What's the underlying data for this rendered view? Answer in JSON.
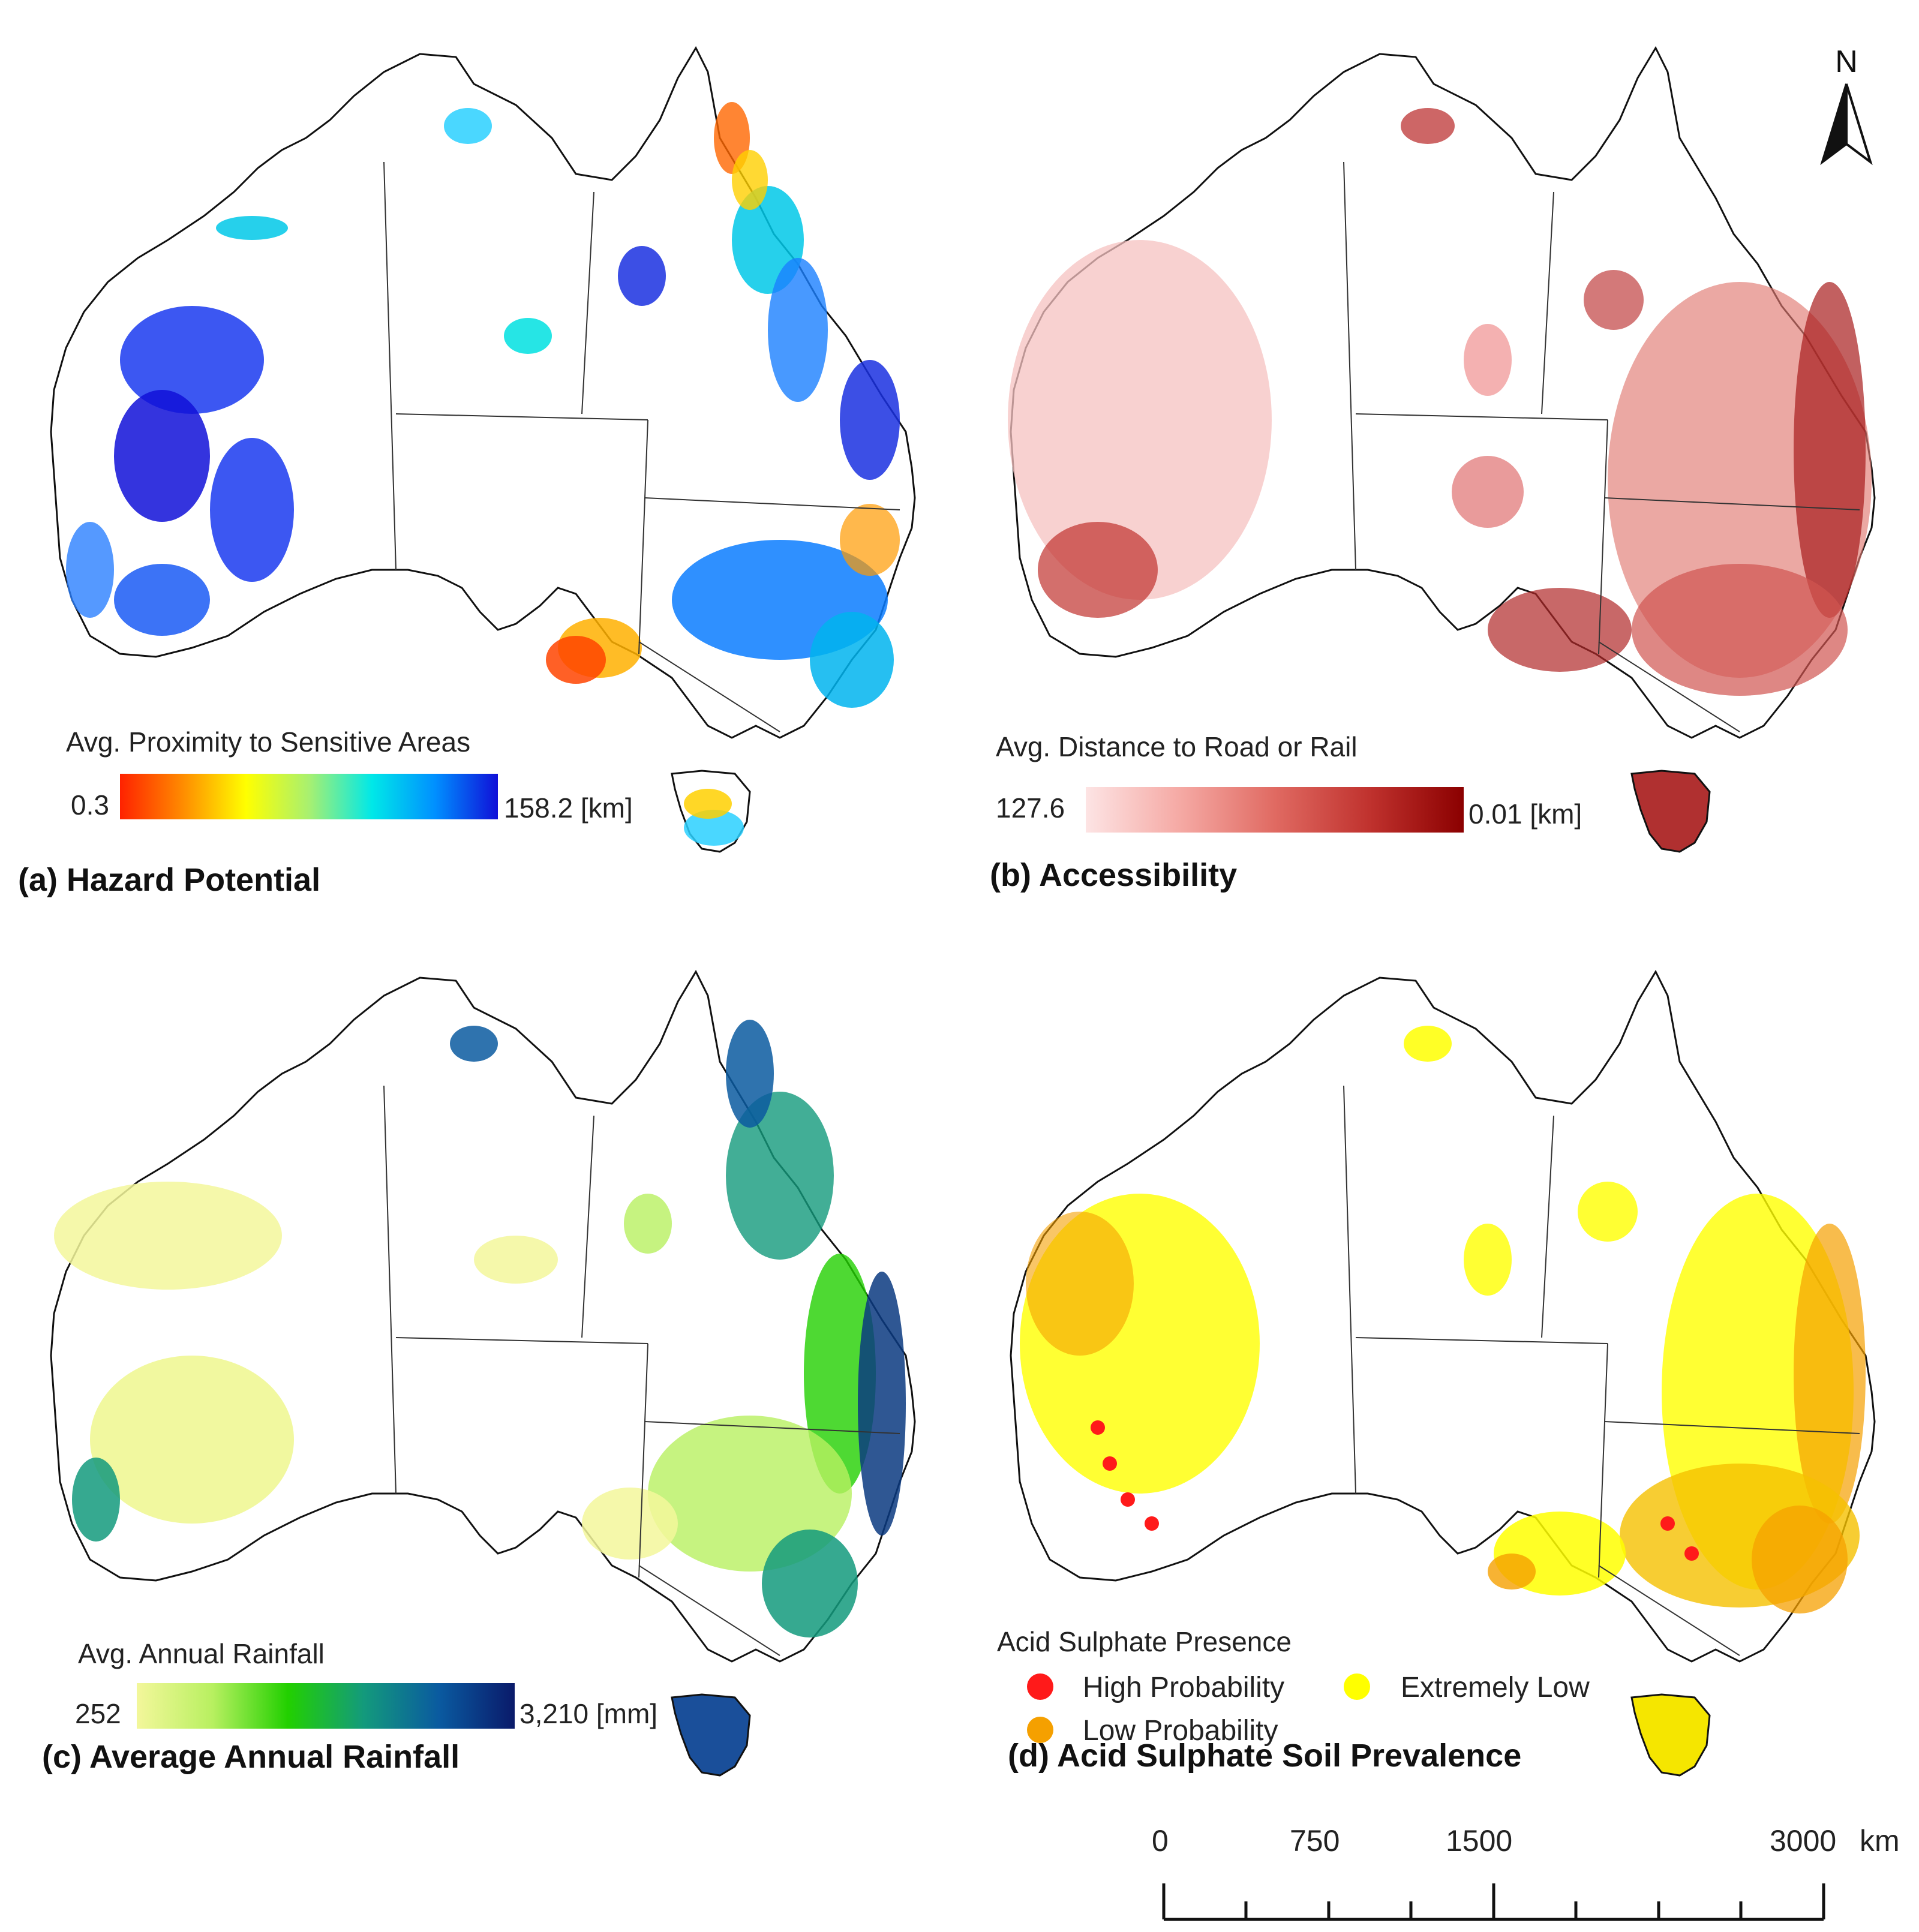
{
  "panels": {
    "a": {
      "label": "(a) Hazard Potential",
      "legend_title": "Avg. Proximity to Sensitive Areas",
      "min_label": "0.3",
      "max_label": "158.2 [km]",
      "gradient": [
        "#ff2200",
        "#ff8c00",
        "#ffff00",
        "#a8f070",
        "#00e8e8",
        "#0090ff",
        "#1010d8"
      ]
    },
    "b": {
      "label": "(b) Accessibility",
      "legend_title": "Avg. Distance to Road or Rail",
      "min_label": "127.6",
      "max_label": "0.01 [km]",
      "gradient": [
        "#fde4e4",
        "#f5a9a4",
        "#e06a62",
        "#c0322e",
        "#8b0000"
      ]
    },
    "c": {
      "label": "(c) Average Annual Rainfall",
      "legend_title": "Avg. Annual Rainfall",
      "min_label": "252",
      "max_label": "3,210 [mm]",
      "gradient": [
        "#f3f79b",
        "#b8f060",
        "#22d000",
        "#139a7c",
        "#0a5aa0",
        "#0a1a6a"
      ]
    },
    "d": {
      "label": "(d) Acid Sulphate Soil Prevalence",
      "legend_title": "Acid Sulphate Presence",
      "categories": [
        {
          "label": "High Probability",
          "color": "#ff1a1a"
        },
        {
          "label": "Low Probability",
          "color": "#f5a000"
        },
        {
          "label": "Extremely Low",
          "color": "#ffff00"
        }
      ]
    }
  },
  "north_label": "N",
  "scale": {
    "ticks": [
      "0",
      "750",
      "1500",
      "3000"
    ],
    "unit": "km"
  }
}
